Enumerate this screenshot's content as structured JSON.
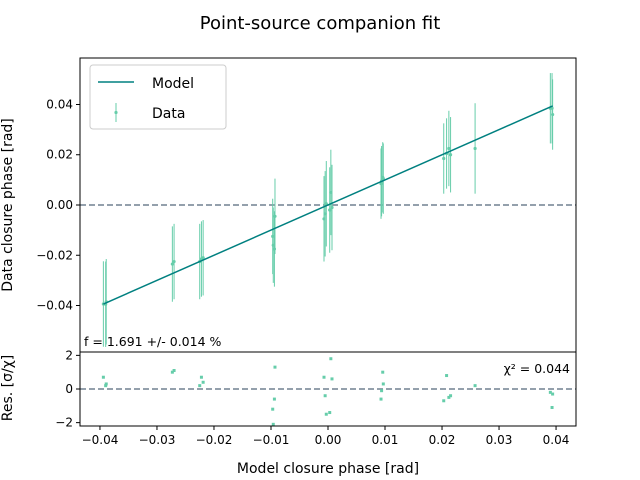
{
  "chart_data": {
    "type": "scatter",
    "title": "Point-source companion fit",
    "xlabel": "Model closure phase [rad]",
    "xlim": [
      -0.0435,
      0.0435
    ],
    "xticks": [
      "−0.04",
      "−0.03",
      "−0.02",
      "−0.01",
      "0.00",
      "0.01",
      "0.02",
      "0.03",
      "0.04"
    ],
    "x_tick_values": [
      -0.04,
      -0.03,
      -0.02,
      -0.01,
      0.0,
      0.01,
      0.02,
      0.03,
      0.04
    ],
    "top_panel": {
      "ylabel": "Data closure phase [rad]",
      "ylim": [
        -0.0585,
        0.0585
      ],
      "yticks": [
        "−0.04",
        "−0.02",
        "0.00",
        "0.02",
        "0.04"
      ],
      "y_tick_values": [
        -0.04,
        -0.02,
        0.0,
        0.02,
        0.04
      ],
      "annotation": "f = 1.691 +/- 0.014 %",
      "reference_line_y": 0.0,
      "legend": {
        "position": "upper-left",
        "entries": [
          "Model",
          "Data"
        ]
      },
      "series": [
        {
          "name": "Model",
          "kind": "line",
          "color": "#008080",
          "x": [
            -0.0394,
            0.0394
          ],
          "y": [
            -0.0394,
            0.0394
          ]
        },
        {
          "name": "Data",
          "kind": "errorbar",
          "color": "#66cdaa",
          "x": [
            -0.0394,
            -0.039,
            -0.0389,
            -0.0273,
            -0.027,
            -0.0225,
            -0.0222,
            -0.0219,
            -0.0097,
            -0.0096,
            -0.0094,
            -0.0093,
            -0.0007,
            -0.0005,
            -0.0003,
            0.0003,
            0.0005,
            0.0007,
            0.0093,
            0.0094,
            0.0096,
            0.0097,
            0.0203,
            0.0208,
            0.0212,
            0.0215,
            0.0258,
            0.039,
            0.0393,
            0.0394
          ],
          "y": [
            -0.0394,
            -0.0395,
            -0.0385,
            -0.0235,
            -0.0225,
            -0.0225,
            -0.0215,
            -0.021,
            -0.0125,
            -0.016,
            -0.0175,
            -0.0045,
            -0.0055,
            -0.0035,
            0.0005,
            -0.002,
            0.005,
            -0.001,
            0.0085,
            0.0095,
            0.011,
            0.0105,
            0.0185,
            0.0205,
            0.0225,
            0.02,
            0.0225,
            0.0385,
            0.0385,
            0.036
          ],
          "yerr": [
            0.017,
            0.017,
            0.017,
            0.015,
            0.015,
            0.015,
            0.015,
            0.015,
            0.015,
            0.015,
            0.015,
            0.015,
            0.017,
            0.017,
            0.017,
            0.017,
            0.017,
            0.017,
            0.014,
            0.014,
            0.014,
            0.014,
            0.014,
            0.014,
            0.015,
            0.015,
            0.018,
            0.014,
            0.014,
            0.014
          ]
        }
      ]
    },
    "bottom_panel": {
      "ylabel": "Res. [σ/χ]",
      "ylim": [
        -2.2,
        2.2
      ],
      "yticks": [
        "−2",
        "0",
        "2"
      ],
      "y_tick_values": [
        -2,
        0,
        2
      ],
      "annotation": "χ² = 0.044",
      "reference_line_y": 0.0,
      "series": [
        {
          "name": "Residuals",
          "kind": "scatter",
          "color": "#66cdaa",
          "x": [
            -0.0394,
            -0.039,
            -0.0389,
            -0.0273,
            -0.027,
            -0.0225,
            -0.0222,
            -0.0219,
            -0.0097,
            -0.0096,
            -0.0094,
            -0.0093,
            -0.0007,
            -0.0005,
            -0.0003,
            0.0003,
            0.0005,
            0.0007,
            0.0093,
            0.0094,
            0.0096,
            0.0097,
            0.0203,
            0.0208,
            0.0212,
            0.0215,
            0.0258,
            0.039,
            0.0393,
            0.0394
          ],
          "y": [
            0.7,
            0.2,
            0.3,
            1.0,
            1.1,
            0.2,
            0.7,
            0.4,
            -1.2,
            -2.1,
            -0.6,
            1.3,
            0.7,
            -0.4,
            -1.5,
            -1.4,
            1.8,
            0.6,
            -0.6,
            -0.1,
            1.0,
            0.3,
            -0.7,
            0.8,
            -0.5,
            -0.4,
            0.2,
            -0.2,
            -1.1,
            -0.3
          ]
        }
      ]
    }
  },
  "colors": {
    "model": "#008080",
    "data": "#66cdaa",
    "reference": "#708090"
  }
}
